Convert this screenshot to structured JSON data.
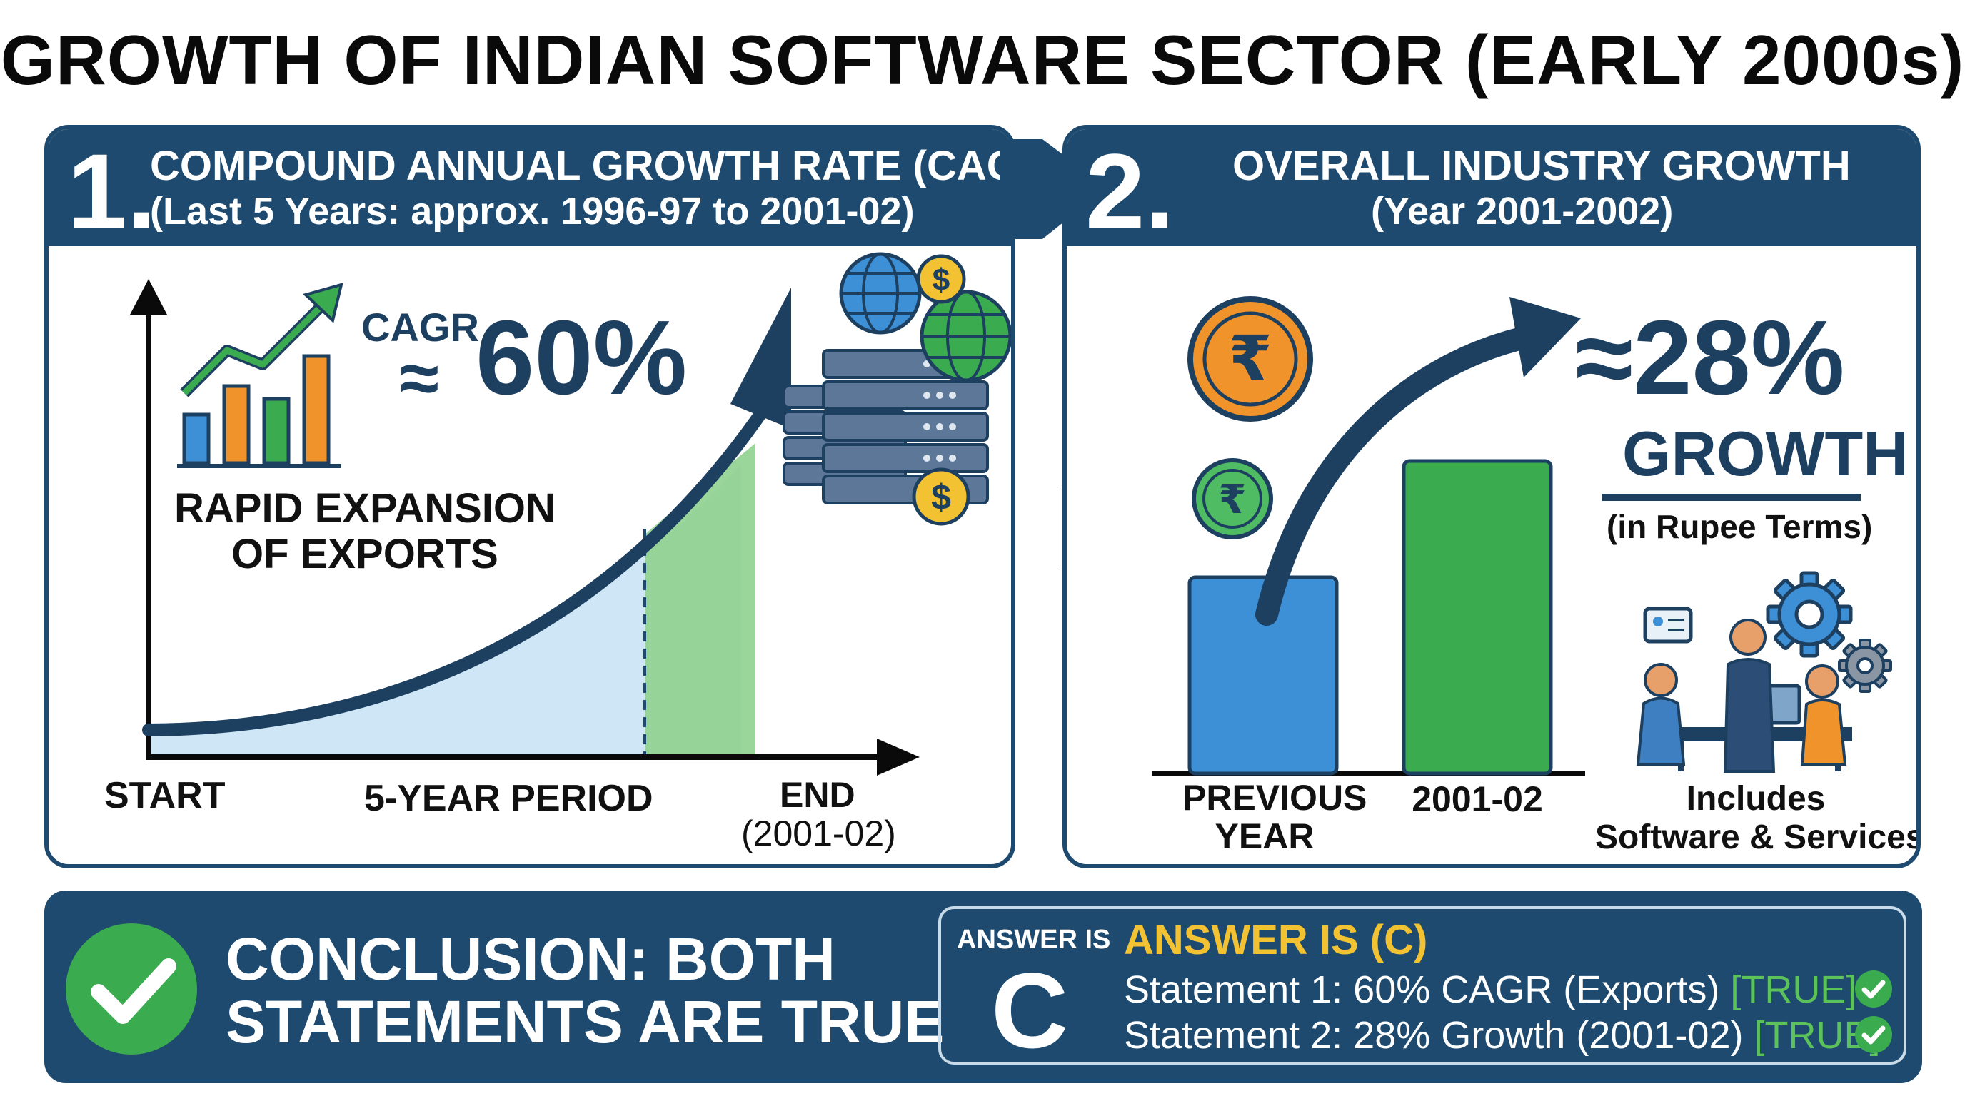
{
  "title": "GROWTH OF INDIAN SOFTWARE SECTOR (EARLY 2000s)",
  "panel1": {
    "number": "1.",
    "heading": "COMPOUND ANNUAL GROWTH RATE (CAGR)",
    "subheading": "(Last 5 Years: approx. 1996-97 to 2001-02)",
    "cagr_label": "CAGR",
    "approx_symbol": "≈",
    "cagr_value": "60%",
    "exports_line1": "RAPID EXPANSION",
    "exports_line2": "OF EXPORTS",
    "x_start": "START",
    "x_period": "5-YEAR PERIOD",
    "x_end_line1": "END",
    "x_end_line2": "(2001-02)",
    "icons": [
      "trend-chart-icon",
      "globe-icon",
      "dollar-coin-icon",
      "server-icon"
    ]
  },
  "panel2": {
    "number": "2.",
    "heading": "OVERALL INDUSTRY GROWTH",
    "subheading": "(Year 2001-2002)",
    "growth_value": "≈28%",
    "growth_word": "GROWTH",
    "growth_note": "(in Rupee Terms)",
    "bar_prev_line1": "PREVIOUS",
    "bar_prev_line2": "YEAR",
    "bar_curr": "2001-02",
    "includes_line1": "Includes",
    "includes_line2": "Software & Services",
    "bar_growth_fraction": 0.28,
    "colors": {
      "prev_bar": "#3d8fd6",
      "curr_bar": "#3bab4f"
    },
    "icons": [
      "rupee-coin-icon",
      "team-meeting-icon",
      "gear-icon"
    ]
  },
  "conclusion": {
    "text_line1": "CONCLUSION: BOTH",
    "text_line2": "STATEMENTS ARE TRUE",
    "answer_is_label": "ANSWER IS",
    "answer_letter": "C",
    "answer_heading": "ANSWER IS (C)",
    "statement1": "Statement 1: 60% CAGR (Exports)",
    "statement1_tag": "[TRUE]",
    "statement2": "Statement 2: 28% Growth (2001-02)",
    "statement2_tag": "[TRUE]"
  },
  "colors": {
    "navy": "#1d4a6e",
    "green": "#3bab4f",
    "blue": "#3d8fd6",
    "orange": "#f0932b",
    "gold": "#f2c232",
    "light_blue_fill": "#cfe6f6"
  }
}
